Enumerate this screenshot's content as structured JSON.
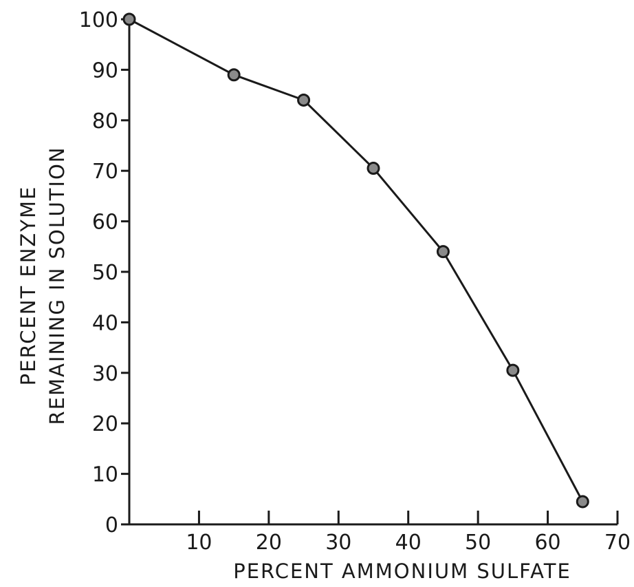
{
  "chart_data": {
    "type": "line",
    "title": "",
    "xlabel": "PERCENT AMMONIUM SULFATE",
    "ylabel_line1": "PERCENT ENZYME",
    "ylabel_line2": "REMAINING IN SOLUTION",
    "xlim": [
      0,
      70
    ],
    "ylim": [
      0,
      100
    ],
    "x_ticks": [
      10,
      20,
      30,
      40,
      50,
      60,
      70
    ],
    "y_ticks": [
      0,
      10,
      20,
      30,
      40,
      50,
      60,
      70,
      80,
      90,
      100
    ],
    "grid": false,
    "legend": "none",
    "series": [
      {
        "x": [
          0,
          15,
          25,
          35,
          45,
          55,
          65
        ],
        "y": [
          100,
          89,
          84,
          70.5,
          54,
          30.5,
          4.5
        ]
      }
    ]
  }
}
